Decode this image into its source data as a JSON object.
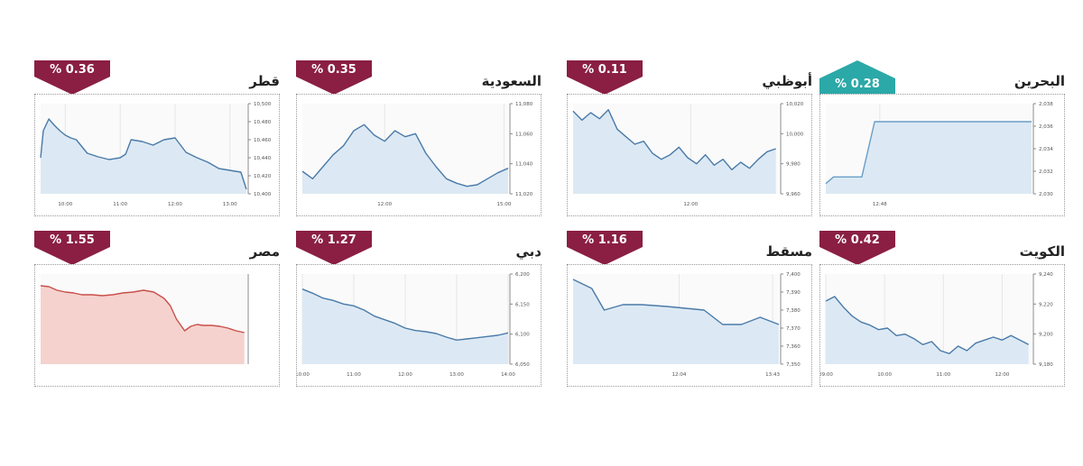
{
  "chart_data": [
    {
      "type": "line",
      "title": "البحرين",
      "change": "% 0.28",
      "direction": "up",
      "color": "#6a9ec7",
      "fill": "#dce9f4",
      "ylim": [
        2030,
        2038
      ],
      "yticks": [
        "2,030",
        "2,032",
        "2,034",
        "2,036",
        "2,038"
      ],
      "xlim": [
        12.6,
        13.4
      ],
      "xticks": [
        {
          "v": 12.81,
          "label": "12:48"
        }
      ],
      "x": [
        12.6,
        12.63,
        12.7,
        12.74,
        12.79,
        13.4
      ],
      "y": [
        2030.9,
        2031.5,
        2031.5,
        2031.5,
        2036.4,
        2036.4
      ]
    },
    {
      "type": "line",
      "title": "أبوظبي",
      "change": "% 0.11",
      "direction": "down",
      "color": "#4a7aa8",
      "fill": "#dce9f4",
      "ylim": [
        9960,
        10020
      ],
      "yticks": [
        "9,960",
        "9,980",
        "10,000",
        "10,020"
      ],
      "xlim": [
        10.0,
        13.5
      ],
      "xticks": [
        {
          "v": 12.0,
          "label": "12:00"
        }
      ],
      "x": [
        10.0,
        10.15,
        10.3,
        10.45,
        10.6,
        10.75,
        10.9,
        11.05,
        11.2,
        11.35,
        11.5,
        11.65,
        11.8,
        11.95,
        12.1,
        12.25,
        12.4,
        12.55,
        12.7,
        12.85,
        13.0,
        13.15,
        13.3,
        13.45
      ],
      "y": [
        10015,
        10009,
        10014,
        10010,
        10016,
        10003,
        9998,
        9993,
        9995,
        9987,
        9983,
        9986,
        9991,
        9984,
        9980,
        9986,
        9979,
        9983,
        9976,
        9981,
        9977,
        9983,
        9988,
        9990
      ]
    },
    {
      "type": "line",
      "title": "السعودية",
      "change": "% 0.35",
      "direction": "down",
      "color": "#4a7aa8",
      "fill": "#dce9f4",
      "ylim": [
        11020,
        11080
      ],
      "yticks": [
        "11,020",
        "11,040",
        "11,060",
        "11,080"
      ],
      "xlim": [
        10.0,
        15.0
      ],
      "xticks": [
        {
          "v": 12.0,
          "label": "12:00"
        },
        {
          "v": 14.9,
          "label": "15:00"
        }
      ],
      "x": [
        10.0,
        10.25,
        10.5,
        10.75,
        11.0,
        11.25,
        11.5,
        11.75,
        12.0,
        12.25,
        12.5,
        12.75,
        13.0,
        13.25,
        13.5,
        13.75,
        14.0,
        14.25,
        14.5,
        14.75,
        15.0
      ],
      "y": [
        11035,
        11030,
        11038,
        11046,
        11052,
        11062,
        11066,
        11059,
        11055,
        11062,
        11058,
        11060,
        11047,
        11038,
        11030,
        11027,
        11025,
        11026,
        11030,
        11034,
        11037
      ]
    },
    {
      "type": "line",
      "title": "قطر",
      "change": "% 0.36",
      "direction": "down",
      "color": "#4a7aa8",
      "fill": "#dce9f4",
      "ylim": [
        10400,
        10500
      ],
      "yticks": [
        "10,400",
        "10,420",
        "10,440",
        "10,460",
        "10,480",
        "10,500"
      ],
      "xlim": [
        9.55,
        13.3
      ],
      "xticks": [
        {
          "v": 10.0,
          "label": "10:00"
        },
        {
          "v": 11.0,
          "label": "11:00"
        },
        {
          "v": 12.0,
          "label": "12:00"
        },
        {
          "v": 13.0,
          "label": "13:00"
        }
      ],
      "x": [
        9.55,
        9.6,
        9.7,
        9.8,
        9.9,
        10.0,
        10.1,
        10.2,
        10.4,
        10.6,
        10.8,
        11.0,
        11.1,
        11.2,
        11.4,
        11.6,
        11.8,
        12.0,
        12.2,
        12.4,
        12.6,
        12.8,
        13.0,
        13.2,
        13.3
      ],
      "y": [
        10440,
        10470,
        10483,
        10476,
        10470,
        10465,
        10462,
        10460,
        10445,
        10441,
        10438,
        10440,
        10444,
        10460,
        10458,
        10454,
        10460,
        10462,
        10446,
        10440,
        10435,
        10428,
        10426,
        10424,
        10405
      ]
    },
    {
      "type": "line",
      "title": "الكويت",
      "change": "% 0.42",
      "direction": "down",
      "color": "#4a7aa8",
      "fill": "#dce9f4",
      "ylim": [
        9180,
        9240
      ],
      "yticks": [
        "9,180",
        "9,200",
        "9,220",
        "9,240"
      ],
      "xlim": [
        9.0,
        12.5
      ],
      "xticks": [
        {
          "v": 9.0,
          "label": "09:00"
        },
        {
          "v": 10.0,
          "label": "10:00"
        },
        {
          "v": 11.0,
          "label": "11:00"
        },
        {
          "v": 12.0,
          "label": "12:00"
        }
      ],
      "x": [
        9.0,
        9.15,
        9.3,
        9.45,
        9.6,
        9.75,
        9.9,
        10.05,
        10.2,
        10.35,
        10.5,
        10.65,
        10.8,
        10.95,
        11.1,
        11.25,
        11.4,
        11.55,
        11.7,
        11.85,
        12.0,
        12.15,
        12.3,
        12.45
      ],
      "y": [
        9222,
        9225,
        9218,
        9212,
        9208,
        9206,
        9203,
        9204,
        9199,
        9200,
        9197,
        9193,
        9195,
        9189,
        9187,
        9192,
        9189,
        9194,
        9196,
        9198,
        9196,
        9199,
        9196,
        9193
      ]
    },
    {
      "type": "line",
      "title": "مسقط",
      "change": "% 1.16",
      "direction": "down",
      "color": "#4a7aa8",
      "fill": "#dce9f4",
      "ylim": [
        7350,
        7400
      ],
      "yticks": [
        "7,350",
        "7,360",
        "7,370",
        "7,380",
        "7,390",
        "7,400"
      ],
      "xlim": [
        10.0,
        13.3
      ],
      "xticks": [
        {
          "v": 11.7,
          "label": "12:04"
        },
        {
          "v": 13.2,
          "label": "13:43"
        }
      ],
      "x": [
        10.0,
        10.3,
        10.5,
        10.8,
        11.1,
        11.5,
        11.8,
        12.1,
        12.4,
        12.7,
        13.0,
        13.3
      ],
      "y": [
        7397,
        7392,
        7380,
        7383,
        7383,
        7382,
        7381,
        7380,
        7372,
        7372,
        7376,
        7372
      ]
    },
    {
      "type": "line",
      "title": "دبي",
      "change": "% 1.27",
      "direction": "down",
      "color": "#4a7aa8",
      "fill": "#dce9f4",
      "ylim": [
        6050,
        6200
      ],
      "yticks": [
        "6,050",
        "6,100",
        "6,150",
        "6,200"
      ],
      "xlim": [
        10.0,
        14.0
      ],
      "xticks": [
        {
          "v": 10.0,
          "label": "10:00"
        },
        {
          "v": 11.0,
          "label": "11:00"
        },
        {
          "v": 12.0,
          "label": "12:00"
        },
        {
          "v": 13.0,
          "label": "13:00"
        },
        {
          "v": 14.0,
          "label": "14:00"
        }
      ],
      "x": [
        10.0,
        10.2,
        10.4,
        10.6,
        10.8,
        11.0,
        11.2,
        11.4,
        11.6,
        11.8,
        12.0,
        12.2,
        12.4,
        12.6,
        12.8,
        13.0,
        13.2,
        13.4,
        13.6,
        13.8,
        14.0
      ],
      "y": [
        6175,
        6168,
        6160,
        6156,
        6150,
        6147,
        6140,
        6130,
        6124,
        6118,
        6110,
        6106,
        6104,
        6101,
        6095,
        6090,
        6092,
        6094,
        6096,
        6098,
        6102
      ]
    },
    {
      "type": "line",
      "title": "مصر",
      "change": "% 1.55",
      "direction": "down",
      "color": "#c8504a",
      "fill": "#f5d2ce",
      "ylim": [
        0,
        10
      ],
      "yticks": [],
      "xlim": [
        0,
        10
      ],
      "xticks": [],
      "x": [
        0.0,
        0.4,
        0.8,
        1.2,
        1.6,
        2.0,
        2.5,
        3.0,
        3.5,
        4.0,
        4.5,
        5.0,
        5.5,
        6.0,
        6.3,
        6.6,
        7.0,
        7.3,
        7.6,
        7.9,
        8.3,
        8.7,
        9.1,
        9.5,
        9.9
      ],
      "y": [
        8.7,
        8.6,
        8.2,
        8.0,
        7.9,
        7.7,
        7.7,
        7.6,
        7.7,
        7.9,
        8.0,
        8.2,
        8.0,
        7.3,
        6.5,
        5.0,
        3.7,
        4.2,
        4.4,
        4.3,
        4.3,
        4.2,
        4.0,
        3.7,
        3.5
      ]
    }
  ]
}
